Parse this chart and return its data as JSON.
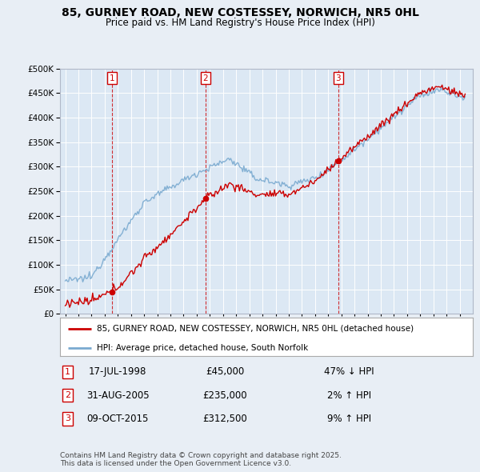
{
  "title_line1": "85, GURNEY ROAD, NEW COSTESSEY, NORWICH, NR5 0HL",
  "title_line2": "Price paid vs. HM Land Registry's House Price Index (HPI)",
  "bg_color": "#e8eef5",
  "plot_bg_color": "#dce8f4",
  "grid_color": "#ffffff",
  "sale_color": "#cc0000",
  "hpi_color": "#7aaad0",
  "sale_prices": [
    45000,
    235000,
    312500
  ],
  "sale_times": [
    1998.54,
    2005.67,
    2015.77
  ],
  "annotations": [
    {
      "num": 1,
      "date": "17-JUL-1998",
      "price": "£45,000",
      "pct": "47% ↓ HPI"
    },
    {
      "num": 2,
      "date": "31-AUG-2005",
      "price": "£235,000",
      "pct": "2% ↑ HPI"
    },
    {
      "num": 3,
      "date": "09-OCT-2015",
      "price": "£312,500",
      "pct": "9% ↑ HPI"
    }
  ],
  "legend_sale": "85, GURNEY ROAD, NEW COSTESSEY, NORWICH, NR5 0HL (detached house)",
  "legend_hpi": "HPI: Average price, detached house, South Norfolk",
  "footer": "Contains HM Land Registry data © Crown copyright and database right 2025.\nThis data is licensed under the Open Government Licence v3.0.",
  "ylim": [
    0,
    500000
  ],
  "yticks": [
    0,
    50000,
    100000,
    150000,
    200000,
    250000,
    300000,
    350000,
    400000,
    450000,
    500000
  ],
  "ytick_labels": [
    "£0",
    "£50K",
    "£100K",
    "£150K",
    "£200K",
    "£250K",
    "£300K",
    "£350K",
    "£400K",
    "£450K",
    "£500K"
  ]
}
